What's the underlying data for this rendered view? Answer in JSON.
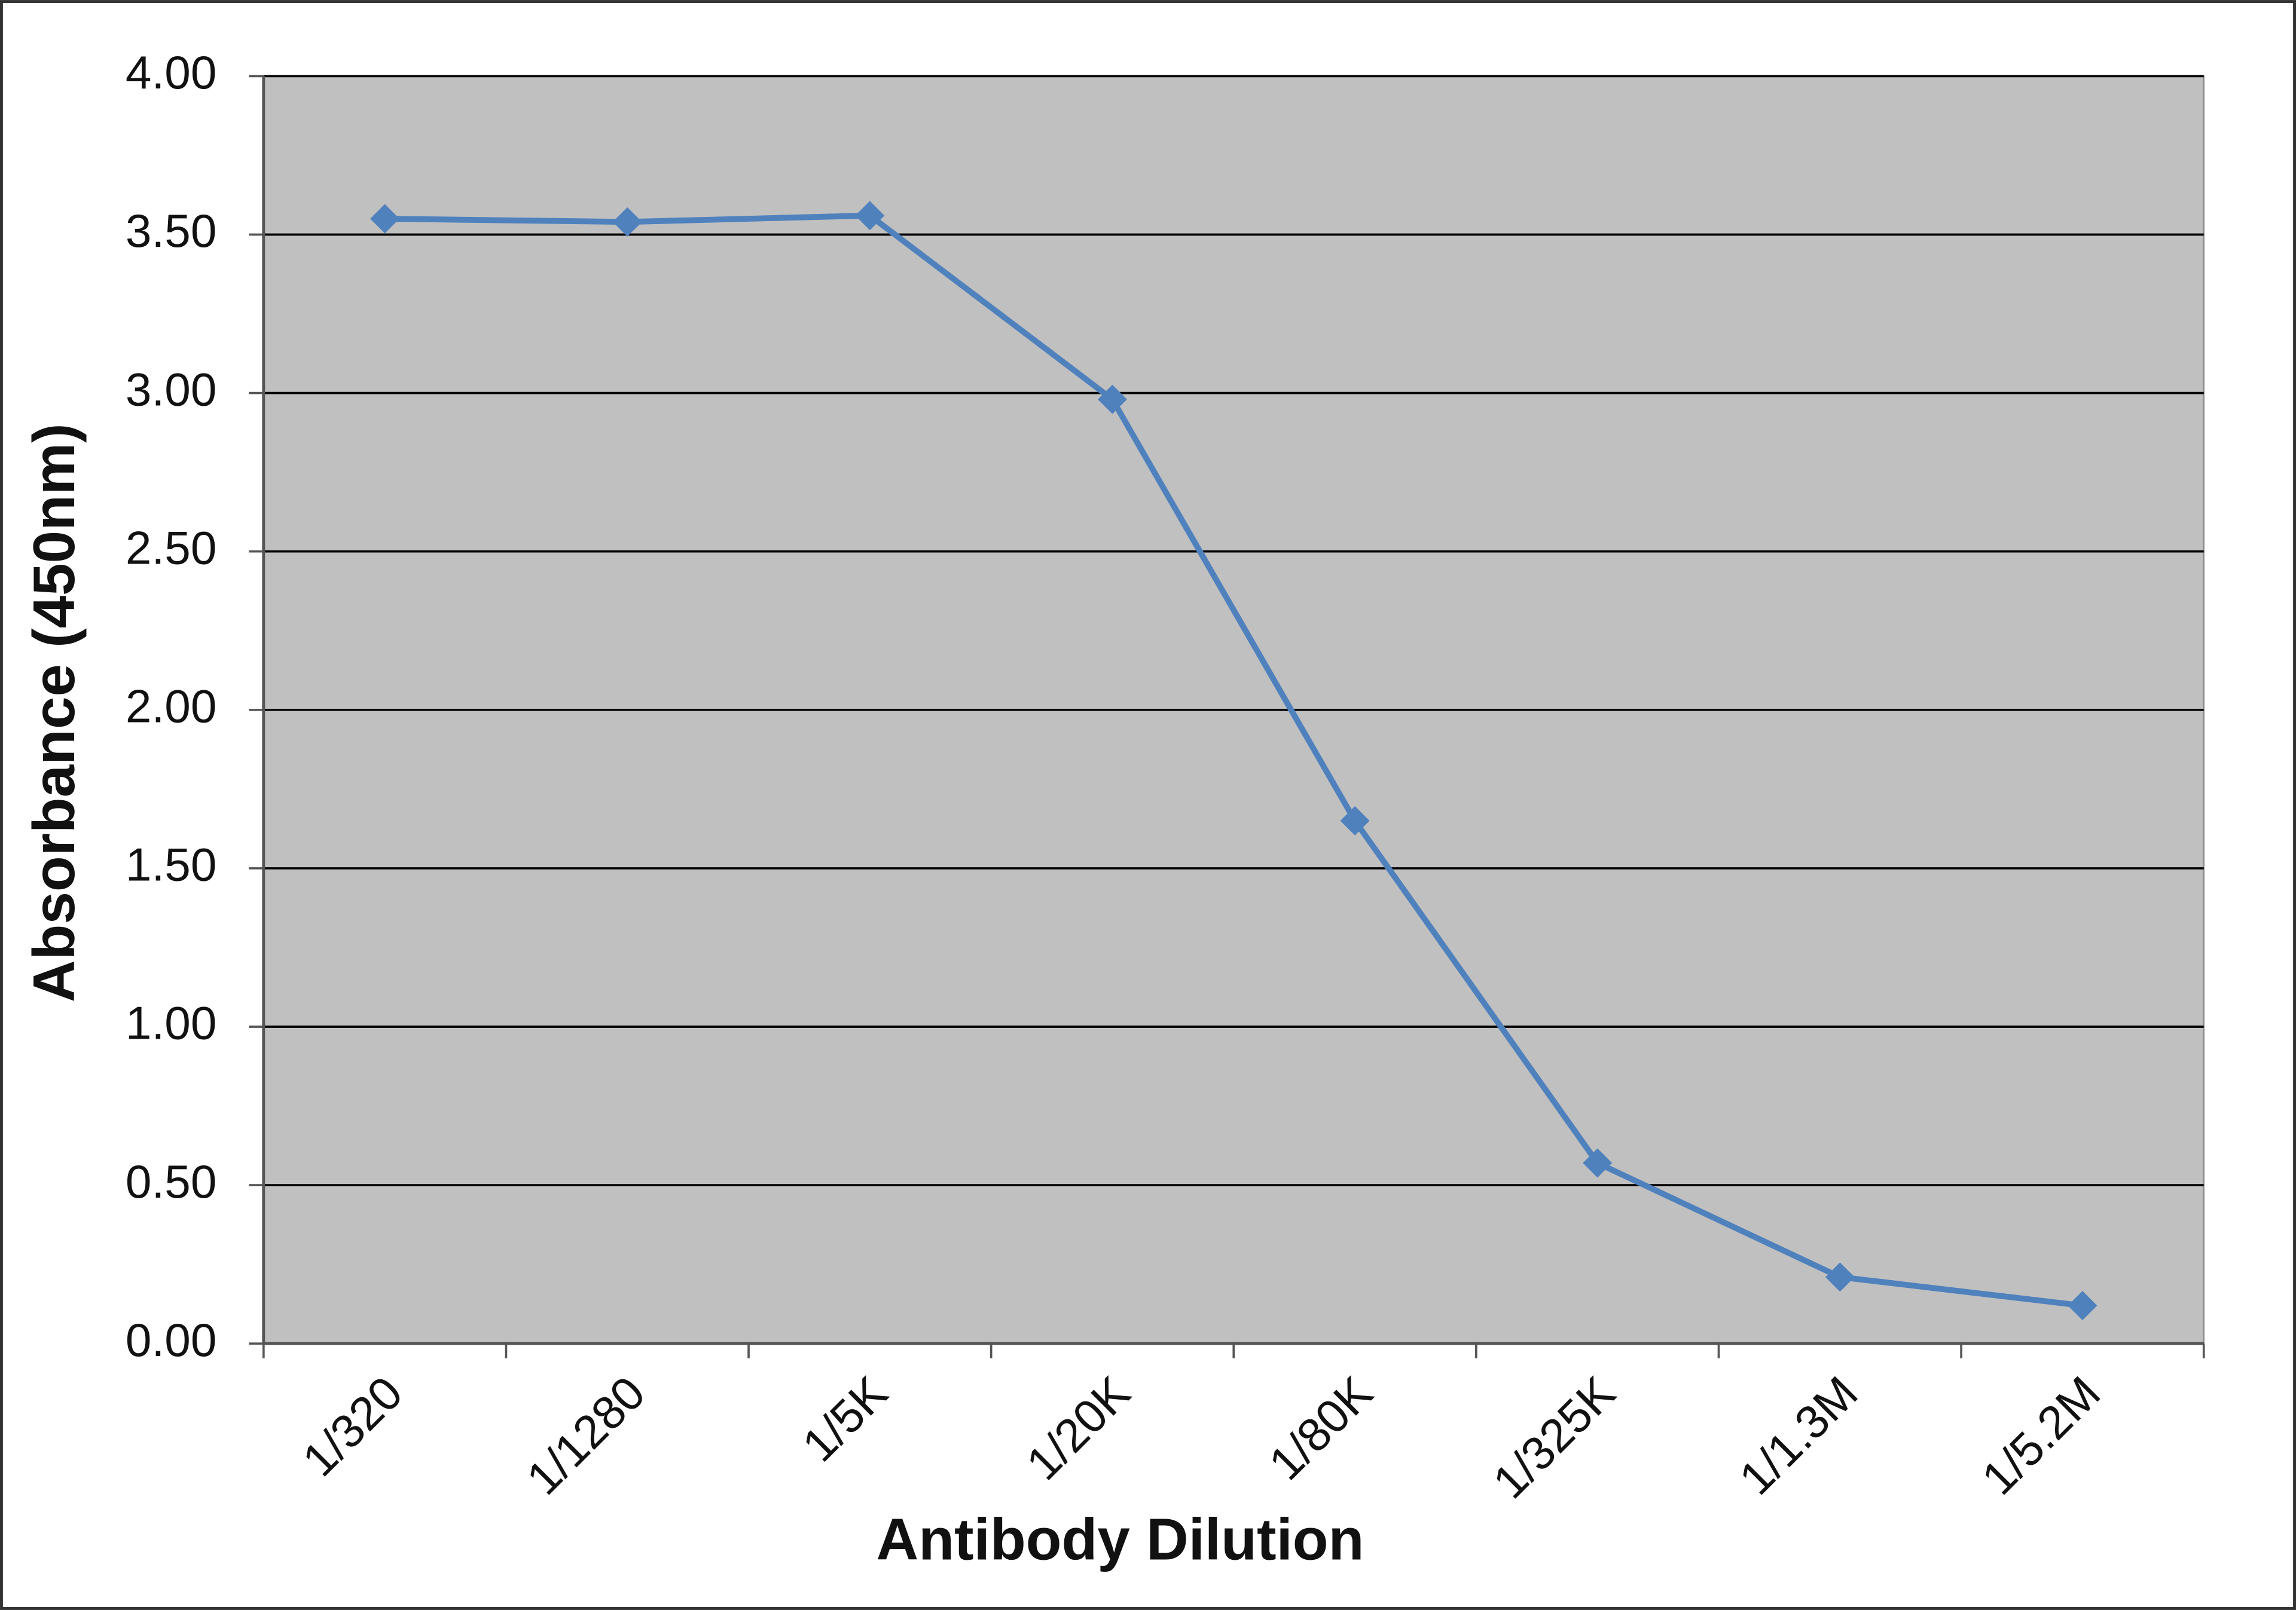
{
  "chart_data": {
    "type": "line",
    "x_label": "Antibody Dilution",
    "y_label": "Absorbance (450nm)",
    "categories": [
      "1/320",
      "1/1280",
      "1/5K",
      "1/20K",
      "1/80K",
      "1/325K",
      "1/1.3M",
      "1/5.2M"
    ],
    "values": [
      3.55,
      3.54,
      3.56,
      2.98,
      1.65,
      0.57,
      0.21,
      0.12
    ],
    "color": "#4f81bd",
    "ylim": [
      0,
      4
    ],
    "yticks": [
      {
        "value": 0,
        "label": "0.00"
      },
      {
        "value": 0.5,
        "label": "0.50"
      },
      {
        "value": 1,
        "label": "1.00"
      },
      {
        "value": 1.5,
        "label": "1.50"
      },
      {
        "value": 2,
        "label": "2.00"
      },
      {
        "value": 2.5,
        "label": "2.50"
      },
      {
        "value": 3,
        "label": "3.00"
      },
      {
        "value": 3.5,
        "label": "3.50"
      },
      {
        "value": 4,
        "label": "4.00"
      }
    ],
    "grid": true
  }
}
